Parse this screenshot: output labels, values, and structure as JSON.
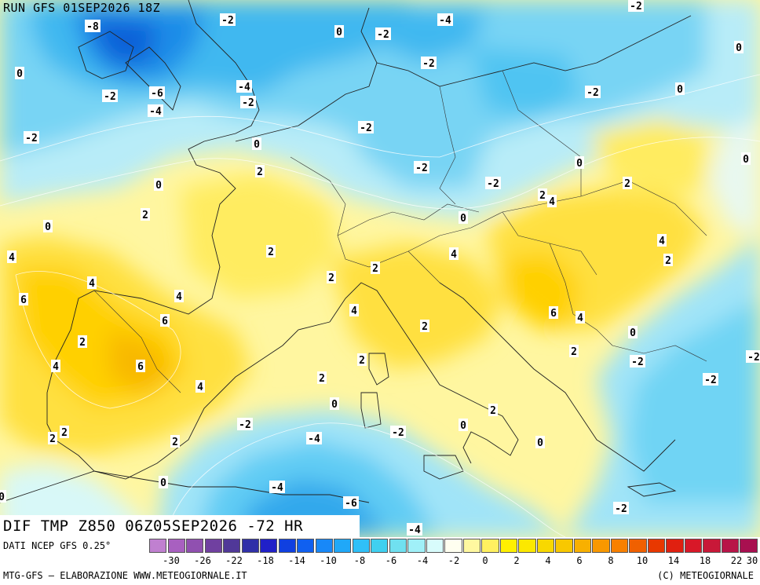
{
  "header": {
    "run_title": "RUN GFS 01SEP2026 18Z"
  },
  "map": {
    "field_title": "DIF TMP Z850 06Z05SEP2026 -72 HR",
    "labels": [
      {
        "text": "-8"
      },
      {
        "text": "-2"
      },
      {
        "text": "-2"
      },
      {
        "text": "0"
      },
      {
        "text": "-4"
      },
      {
        "text": "-2"
      },
      {
        "text": "0"
      },
      {
        "text": "-2"
      },
      {
        "text": "-6"
      },
      {
        "text": "-4"
      },
      {
        "text": "-4"
      },
      {
        "text": "-2"
      },
      {
        "text": "-2"
      },
      {
        "text": "-2"
      },
      {
        "text": "-2"
      },
      {
        "text": "0"
      },
      {
        "text": "-2"
      },
      {
        "text": "0"
      },
      {
        "text": "0"
      },
      {
        "text": "2"
      },
      {
        "text": "-2"
      },
      {
        "text": "0"
      },
      {
        "text": "-2"
      },
      {
        "text": "2"
      },
      {
        "text": "2"
      },
      {
        "text": "4"
      },
      {
        "text": "2"
      },
      {
        "text": "0"
      },
      {
        "text": "0"
      },
      {
        "text": "0"
      },
      {
        "text": "4"
      },
      {
        "text": "2"
      },
      {
        "text": "4"
      },
      {
        "text": "2"
      },
      {
        "text": "4"
      },
      {
        "text": "2"
      },
      {
        "text": "2"
      },
      {
        "text": "6"
      },
      {
        "text": "4"
      },
      {
        "text": "4"
      },
      {
        "text": "6"
      },
      {
        "text": "4"
      },
      {
        "text": "2"
      },
      {
        "text": "6"
      },
      {
        "text": "4"
      },
      {
        "text": "2"
      },
      {
        "text": "0"
      },
      {
        "text": "2"
      },
      {
        "text": "2"
      },
      {
        "text": "-2"
      },
      {
        "text": "-2"
      },
      {
        "text": "6"
      },
      {
        "text": "4"
      },
      {
        "text": "2"
      },
      {
        "text": "4"
      },
      {
        "text": "0"
      },
      {
        "text": "2"
      },
      {
        "text": "-2"
      },
      {
        "text": "-2"
      },
      {
        "text": "-4"
      },
      {
        "text": "2"
      },
      {
        "text": "0"
      },
      {
        "text": "0"
      },
      {
        "text": "2"
      },
      {
        "text": "0"
      },
      {
        "text": "-4"
      },
      {
        "text": "-6"
      },
      {
        "text": "-2"
      },
      {
        "text": "-4"
      },
      {
        "text": "0"
      },
      {
        "text": "-2"
      },
      {
        "text": "2"
      },
      {
        "text": "0"
      }
    ]
  },
  "legend": {
    "source": "DATI NCEP GFS 0.25°",
    "tick_labels": [
      "-30",
      "-26",
      "-22",
      "-18",
      "-14",
      "-10",
      "-8",
      "-6",
      "-4",
      "-2",
      "0",
      "2",
      "4",
      "6",
      "8",
      "10",
      "14",
      "18",
      "22",
      "30"
    ],
    "colors": [
      "#c080d0",
      "#a860c0",
      "#9050b0",
      "#7040a0",
      "#503898",
      "#3030a8",
      "#2020c8",
      "#1040e0",
      "#1060f0",
      "#1888f8",
      "#20a8f8",
      "#30c0f8",
      "#40d0f0",
      "#70e0f0",
      "#a0f0f8",
      "#d8fcfc",
      "#fffff0",
      "#fff8a0",
      "#fff060",
      "#fff000",
      "#fce800",
      "#f8d800",
      "#f8c800",
      "#f8b000",
      "#f89800",
      "#f88000",
      "#f06000",
      "#e83800",
      "#e02010",
      "#d81828",
      "#c81838",
      "#b81448",
      "#a81050"
    ]
  },
  "footer": {
    "credits_left": "MTG-GFS – ELABORAZIONE WWW.METEOGIORNALE.IT",
    "credits_right": "(C) METEOGIORNALE"
  }
}
